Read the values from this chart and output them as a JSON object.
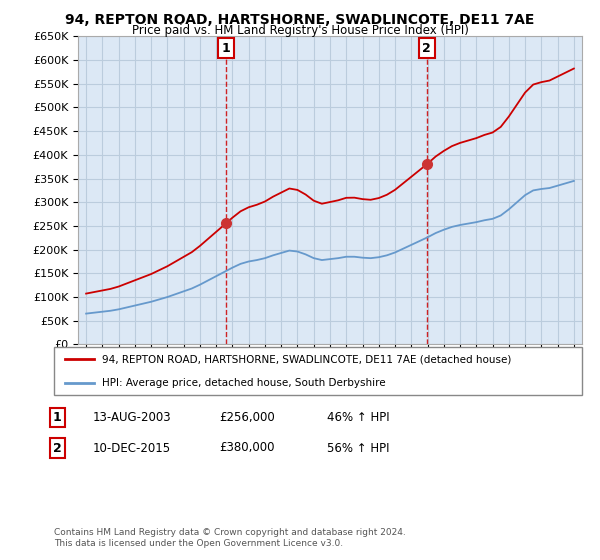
{
  "title1": "94, REPTON ROAD, HARTSHORNE, SWADLINCOTE, DE11 7AE",
  "title2": "Price paid vs. HM Land Registry's House Price Index (HPI)",
  "legend_line1": "94, REPTON ROAD, HARTSHORNE, SWADLINCOTE, DE11 7AE (detached house)",
  "legend_line2": "HPI: Average price, detached house, South Derbyshire",
  "sale1_label": "1",
  "sale1_date": "13-AUG-2003",
  "sale1_price": "£256,000",
  "sale1_hpi": "46% ↑ HPI",
  "sale2_label": "2",
  "sale2_date": "10-DEC-2015",
  "sale2_price": "£380,000",
  "sale2_hpi": "56% ↑ HPI",
  "footnote": "Contains HM Land Registry data © Crown copyright and database right 2024.\nThis data is licensed under the Open Government Licence v3.0.",
  "property_color": "#cc0000",
  "hpi_color": "#6699cc",
  "sale_marker_color": "#cc3333",
  "vline_color": "#cc0000",
  "background_color": "#ffffff",
  "plot_bg_color": "#dce8f5",
  "grid_color": "#bbccdd",
  "ylim": [
    0,
    650000
  ],
  "yticks": [
    0,
    50000,
    100000,
    150000,
    200000,
    250000,
    300000,
    350000,
    400000,
    450000,
    500000,
    550000,
    600000,
    650000
  ],
  "sale1_year": 2003.62,
  "sale1_val": 256000,
  "sale2_year": 2015.95,
  "sale2_val": 380000
}
